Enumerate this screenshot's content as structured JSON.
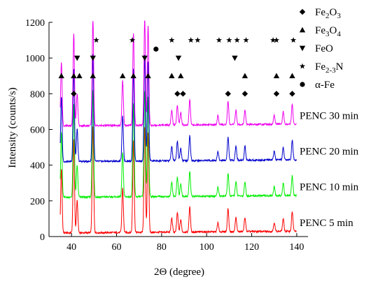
{
  "chart_data": {
    "type": "line",
    "xlabel": "2Θ (degree)",
    "ylabel": "Intensity (counts/s)",
    "xlim": [
      30,
      145
    ],
    "ylim": [
      0,
      1200
    ],
    "x_ticks": [
      "40",
      "60",
      "80",
      "100",
      "120",
      "140"
    ],
    "y_ticks": [
      "0",
      "200",
      "400",
      "600",
      "800",
      "1000",
      "1200"
    ],
    "series": [
      {
        "name": "PENC 5 min",
        "color": "#ff0000",
        "baseline": 20
      },
      {
        "name": "PENC 10 min",
        "color": "#00ee00",
        "baseline": 220
      },
      {
        "name": "PENC 20 min",
        "color": "#0000cc",
        "baseline": 420
      },
      {
        "name": "PENC 30 min",
        "color": "#ee00ee",
        "baseline": 620
      }
    ],
    "peaks": [
      {
        "x": 35.5,
        "h": 360
      },
      {
        "x": 41.0,
        "h": 520
      },
      {
        "x": 42.5,
        "h": 180
      },
      {
        "x": 49.5,
        "h": 600
      },
      {
        "x": 62.7,
        "h": 250
      },
      {
        "x": 67.5,
        "h": 520
      },
      {
        "x": 72.5,
        "h": 600
      },
      {
        "x": 74.0,
        "h": 560
      },
      {
        "x": 84.5,
        "h": 80
      },
      {
        "x": 87.0,
        "h": 110
      },
      {
        "x": 88.5,
        "h": 70
      },
      {
        "x": 92.5,
        "h": 140
      },
      {
        "x": 105.0,
        "h": 50
      },
      {
        "x": 109.5,
        "h": 130
      },
      {
        "x": 113.0,
        "h": 80
      },
      {
        "x": 117.0,
        "h": 80
      },
      {
        "x": 130.0,
        "h": 50
      },
      {
        "x": 134.0,
        "h": 70
      },
      {
        "x": 138.0,
        "h": 110
      }
    ],
    "phase_markers": [
      {
        "phase": "Fe2O3",
        "symbol": "diamond",
        "y": 800,
        "x": [
          41.0,
          87.0,
          89.5,
          109.5,
          117.0,
          131.0,
          138.0
        ]
      },
      {
        "phase": "Fe3O4",
        "symbol": "triangle-up",
        "y": 900,
        "x": [
          35.5,
          41.0,
          43.5,
          49.5,
          62.7,
          67.5,
          74.0,
          84.5,
          88.5,
          117.0,
          131.0,
          138.0
        ]
      },
      {
        "phase": "FeO",
        "symbol": "triangle-down",
        "y": 1000,
        "x": [
          42.5,
          49.5,
          72.5,
          87.5,
          112.5
        ]
      },
      {
        "phase": "Fe2-3N",
        "symbol": "star",
        "y": 1100,
        "x": [
          51.0,
          67.0,
          84.5,
          93.0,
          96.0,
          105.5,
          110.0,
          113.5,
          117.5,
          129.5,
          131.0,
          138.5
        ]
      },
      {
        "phase": "α-Fe",
        "symbol": "circle",
        "y": 1050,
        "x": [
          77.5
        ]
      }
    ],
    "legend": {
      "position": "top-right",
      "entries": [
        {
          "symbol": "diamond",
          "pre": "Fe",
          "sub1": "2",
          "mid": "O",
          "sub2": "3",
          "post": ""
        },
        {
          "symbol": "triangle-up",
          "pre": "Fe",
          "sub1": "3",
          "mid": "O",
          "sub2": "4",
          "post": ""
        },
        {
          "symbol": "triangle-down",
          "pre": "FeO",
          "sub1": "",
          "mid": "",
          "sub2": "",
          "post": ""
        },
        {
          "symbol": "star",
          "pre": "Fe",
          "sub1": "2-3",
          "mid": "N",
          "sub2": "",
          "post": ""
        },
        {
          "symbol": "circle",
          "pre": "α-Fe",
          "sub1": "",
          "mid": "",
          "sub2": "",
          "post": ""
        }
      ]
    }
  }
}
